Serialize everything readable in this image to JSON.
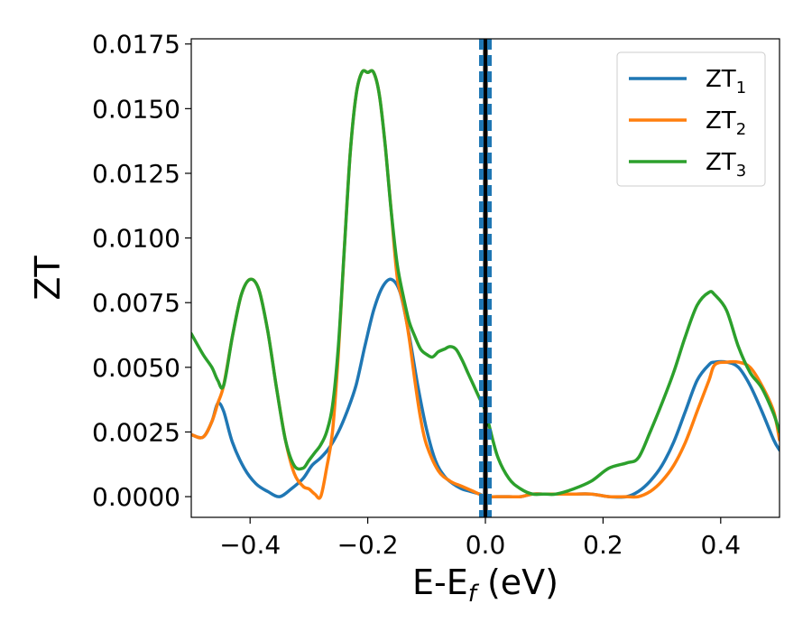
{
  "chart_data": {
    "type": "line",
    "xlabel": "E-E",
    "xlabel_sub": "f",
    "xlabel_unit": " (eV)",
    "ylabel": "ZT",
    "xlim": [
      -0.5,
      0.5
    ],
    "ylim": [
      -0.0008,
      0.0177
    ],
    "x_ticks": [
      {
        "value": -0.4,
        "label": "−0.4"
      },
      {
        "value": -0.2,
        "label": "−0.2"
      },
      {
        "value": 0.0,
        "label": "0.0"
      },
      {
        "value": 0.2,
        "label": "0.2"
      },
      {
        "value": 0.4,
        "label": "0.4"
      }
    ],
    "y_ticks": [
      {
        "value": 0.0,
        "label": "0.0000"
      },
      {
        "value": 0.0025,
        "label": "0.0025"
      },
      {
        "value": 0.005,
        "label": "0.0050"
      },
      {
        "value": 0.0075,
        "label": "0.0075"
      },
      {
        "value": 0.01,
        "label": "0.0100"
      },
      {
        "value": 0.0125,
        "label": "0.0125"
      },
      {
        "value": 0.015,
        "label": "0.0150"
      },
      {
        "value": 0.0175,
        "label": "0.0175"
      }
    ],
    "grid": false,
    "legend_position": "top-right",
    "vline": {
      "x": 0.0,
      "colors": [
        "#000000",
        "#1f77b4"
      ],
      "style": "dashed"
    },
    "series": [
      {
        "name": "ZT",
        "sub": "1",
        "color": "#1f77b4",
        "x": [
          -0.5,
          -0.48,
          -0.465,
          -0.455,
          -0.445,
          -0.43,
          -0.41,
          -0.39,
          -0.37,
          -0.35,
          -0.33,
          -0.31,
          -0.295,
          -0.28,
          -0.265,
          -0.25,
          -0.235,
          -0.22,
          -0.205,
          -0.19,
          -0.175,
          -0.16,
          -0.145,
          -0.13,
          -0.115,
          -0.1,
          -0.085,
          -0.07,
          -0.055,
          -0.04,
          -0.025,
          -0.01,
          0.0,
          0.02,
          0.04,
          0.06,
          0.08,
          0.1,
          0.12,
          0.15,
          0.18,
          0.21,
          0.24,
          0.26,
          0.28,
          0.3,
          0.32,
          0.34,
          0.36,
          0.38,
          0.39,
          0.41,
          0.43,
          0.45,
          0.47,
          0.49,
          0.5
        ],
        "y": [
          0.0024,
          0.0023,
          0.0029,
          0.0036,
          0.0033,
          0.0021,
          0.0011,
          0.0005,
          0.0002,
          0.0,
          0.0003,
          0.0007,
          0.0012,
          0.0015,
          0.0019,
          0.0025,
          0.0033,
          0.0043,
          0.0058,
          0.0072,
          0.0081,
          0.0084,
          0.0079,
          0.0063,
          0.0043,
          0.0026,
          0.0014,
          0.0008,
          0.0005,
          0.0003,
          0.0002,
          0.0001,
          0.0,
          0.0,
          0.0,
          0.0,
          0.0001,
          0.0001,
          0.0001,
          0.0001,
          0.0001,
          0.0,
          0.0,
          0.0002,
          0.0006,
          0.0012,
          0.0021,
          0.0033,
          0.0045,
          0.0051,
          0.0052,
          0.0052,
          0.005,
          0.0043,
          0.0033,
          0.0022,
          0.0018
        ]
      },
      {
        "name": "ZT",
        "sub": "2",
        "color": "#ff7f0e",
        "x": [
          -0.5,
          -0.48,
          -0.465,
          -0.455,
          -0.445,
          -0.43,
          -0.415,
          -0.4,
          -0.385,
          -0.37,
          -0.355,
          -0.34,
          -0.325,
          -0.31,
          -0.3,
          -0.29,
          -0.28,
          -0.27,
          -0.26,
          -0.25,
          -0.24,
          -0.23,
          -0.22,
          -0.21,
          -0.2,
          -0.19,
          -0.18,
          -0.17,
          -0.16,
          -0.15,
          -0.14,
          -0.13,
          -0.12,
          -0.11,
          -0.1,
          -0.08,
          -0.06,
          -0.04,
          -0.02,
          0.0,
          0.02,
          0.04,
          0.06,
          0.08,
          0.1,
          0.12,
          0.15,
          0.18,
          0.21,
          0.24,
          0.26,
          0.28,
          0.3,
          0.32,
          0.34,
          0.36,
          0.38,
          0.39,
          0.41,
          0.43,
          0.45,
          0.47,
          0.49,
          0.5
        ],
        "y": [
          0.0024,
          0.0023,
          0.0029,
          0.0036,
          0.0043,
          0.0062,
          0.0078,
          0.0084,
          0.008,
          0.0064,
          0.0042,
          0.0022,
          0.0009,
          0.0004,
          0.0003,
          0.0001,
          0.0,
          0.0011,
          0.0025,
          0.0055,
          0.0095,
          0.0132,
          0.0155,
          0.0164,
          0.0164,
          0.0164,
          0.0155,
          0.0135,
          0.011,
          0.0085,
          0.0075,
          0.0062,
          0.0045,
          0.003,
          0.002,
          0.001,
          0.0006,
          0.0004,
          0.0002,
          0.0,
          0.0,
          0.0,
          0.0,
          0.0001,
          0.0001,
          0.0001,
          0.0001,
          0.0001,
          0.0,
          0.0,
          0.0,
          0.0002,
          0.0006,
          0.0012,
          0.0021,
          0.0033,
          0.0045,
          0.0051,
          0.0052,
          0.0052,
          0.005,
          0.0043,
          0.0033,
          0.0022
        ]
      },
      {
        "name": "ZT",
        "sub": "3",
        "color": "#2ca02c",
        "x": [
          -0.5,
          -0.48,
          -0.465,
          -0.455,
          -0.445,
          -0.43,
          -0.415,
          -0.4,
          -0.385,
          -0.37,
          -0.355,
          -0.34,
          -0.325,
          -0.31,
          -0.3,
          -0.29,
          -0.28,
          -0.27,
          -0.26,
          -0.25,
          -0.24,
          -0.23,
          -0.22,
          -0.21,
          -0.2,
          -0.19,
          -0.18,
          -0.17,
          -0.16,
          -0.15,
          -0.14,
          -0.13,
          -0.12,
          -0.11,
          -0.1,
          -0.09,
          -0.08,
          -0.07,
          -0.06,
          -0.05,
          -0.04,
          -0.03,
          -0.02,
          -0.01,
          0.0,
          0.02,
          0.04,
          0.06,
          0.08,
          0.1,
          0.12,
          0.15,
          0.18,
          0.21,
          0.24,
          0.26,
          0.28,
          0.3,
          0.32,
          0.34,
          0.36,
          0.38,
          0.39,
          0.41,
          0.43,
          0.45,
          0.47,
          0.49,
          0.5
        ],
        "y": [
          0.0063,
          0.0055,
          0.005,
          0.0045,
          0.0043,
          0.0062,
          0.0078,
          0.0084,
          0.008,
          0.0064,
          0.0042,
          0.0022,
          0.0012,
          0.0011,
          0.0014,
          0.0017,
          0.002,
          0.0025,
          0.0035,
          0.0058,
          0.0095,
          0.0132,
          0.0155,
          0.0164,
          0.0164,
          0.0164,
          0.0155,
          0.0135,
          0.011,
          0.009,
          0.0078,
          0.0068,
          0.0062,
          0.0057,
          0.0055,
          0.0054,
          0.0056,
          0.0057,
          0.0058,
          0.0057,
          0.0053,
          0.0048,
          0.0043,
          0.0038,
          0.0033,
          0.0016,
          0.0007,
          0.0003,
          0.0001,
          0.0001,
          0.0001,
          0.0003,
          0.0006,
          0.0011,
          0.0013,
          0.0015,
          0.0025,
          0.0036,
          0.0048,
          0.0062,
          0.0074,
          0.0079,
          0.0078,
          0.0072,
          0.0058,
          0.0048,
          0.0042,
          0.0032,
          0.0025
        ]
      }
    ]
  }
}
